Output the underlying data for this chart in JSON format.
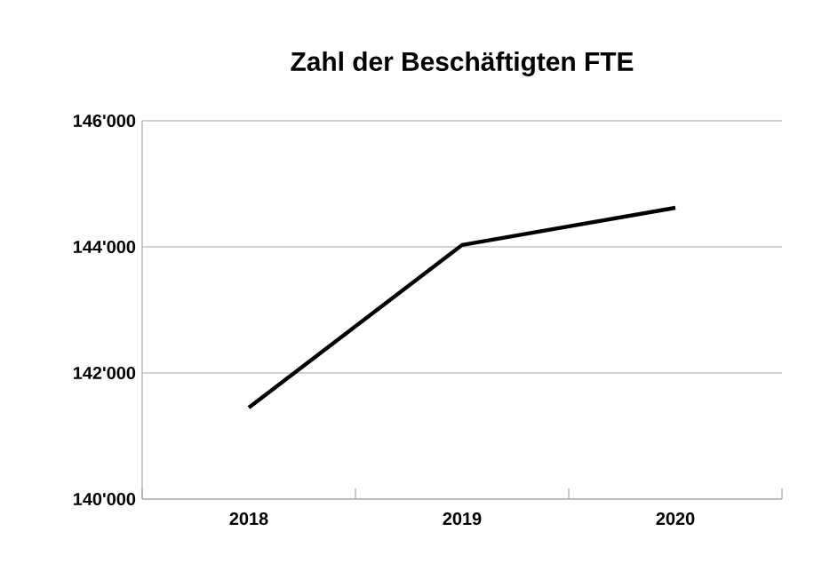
{
  "chart_data": {
    "type": "line",
    "title": "Zahl der Beschäftigten FTE",
    "categories": [
      "2018",
      "2019",
      "2020"
    ],
    "series": [
      {
        "color": "#000000",
        "values": [
          141450,
          144030,
          144620
        ]
      }
    ],
    "ylim": [
      140000,
      146000
    ],
    "yticks": [
      {
        "value": 140000,
        "label": "140'000"
      },
      {
        "value": 142000,
        "label": "142'000"
      },
      {
        "value": 144000,
        "label": "144'000"
      },
      {
        "value": 146000,
        "label": "146'000"
      }
    ],
    "grid": "y",
    "marker": "none",
    "line_style": "solid"
  }
}
